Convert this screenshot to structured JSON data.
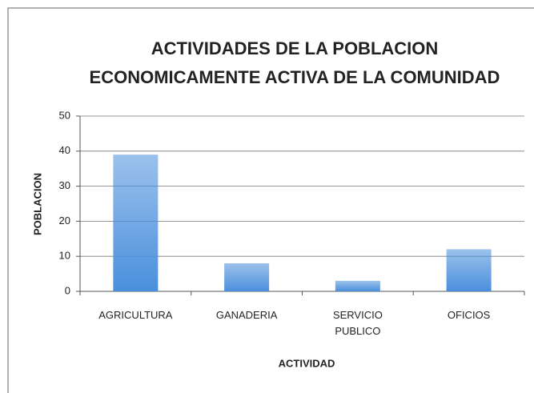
{
  "chart_data": {
    "type": "bar",
    "title": [
      "ACTIVIDADES DE LA POBLACION",
      "ECONOMICAMENTE ACTIVA DE LA COMUNIDAD"
    ],
    "x_label": "ACTIVIDAD",
    "y_label": "POBLACION",
    "categories": [
      "AGRICULTURA",
      "GANADERIA",
      "SERVICIO PUBLICO",
      "OFICIOS"
    ],
    "values": [
      39,
      8,
      3,
      12
    ],
    "color": "#4a8fdc",
    "ylim": [
      0,
      50
    ],
    "yticks": [
      0,
      10,
      20,
      30,
      40,
      50
    ],
    "grid": true
  }
}
